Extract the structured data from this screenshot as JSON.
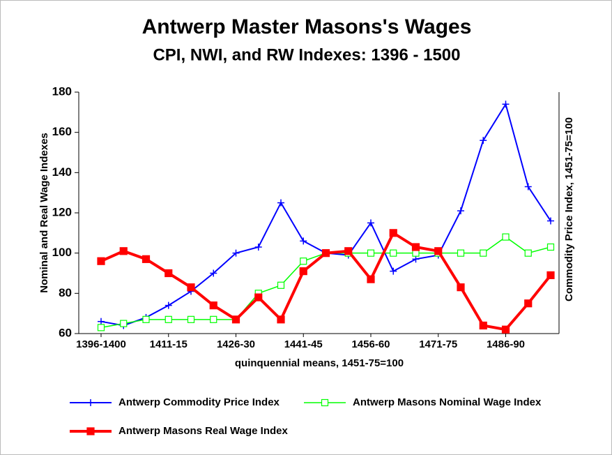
{
  "chart_data": {
    "type": "line",
    "title": "Antwerp Master Masons's Wages",
    "subtitle": "CPI, NWI, and RW Indexes: 1396 - 1500",
    "x_label": "quinquennial means, 1451-75=100",
    "y_label": "Nominal and Real Wage Indexes",
    "y2_label": "Commodity Price Index, 1451-75=100",
    "categories": [
      "1396-1400",
      null,
      null,
      "1411-15",
      null,
      null,
      "1426-30",
      null,
      null,
      "1441-45",
      null,
      null,
      "1456-60",
      null,
      null,
      "1471-75",
      null,
      null,
      "1486-90",
      null,
      null
    ],
    "ylim": [
      60,
      180
    ],
    "yticks": [
      60,
      80,
      100,
      120,
      140,
      160,
      180
    ],
    "grid": false,
    "legend": "bottom",
    "series": [
      {
        "name": "Antwerp Commodity Price Index",
        "color": "#0000ff",
        "marker": "plus",
        "line_width": 2,
        "values": [
          66,
          64,
          68,
          74,
          81,
          90,
          100,
          103,
          125,
          106,
          100,
          99,
          115,
          91,
          97,
          99,
          121,
          156,
          174,
          133,
          116
        ]
      },
      {
        "name": "Antwerp Masons Nominal Wage Index",
        "color": "#00ff00",
        "marker": "square-open",
        "line_width": 1.5,
        "values": [
          63,
          65,
          67,
          67,
          67,
          67,
          67,
          80,
          84,
          96,
          100,
          100,
          100,
          100,
          100,
          100,
          100,
          100,
          108,
          100,
          103
        ]
      },
      {
        "name": "Antwerp Masons Real Wage Index",
        "color": "#ff0000",
        "marker": "square",
        "line_width": 4,
        "values": [
          96,
          101,
          97,
          90,
          83,
          74,
          67,
          78,
          67,
          91,
          100,
          101,
          87,
          110,
          103,
          101,
          83,
          64,
          62,
          75,
          89
        ]
      }
    ]
  }
}
